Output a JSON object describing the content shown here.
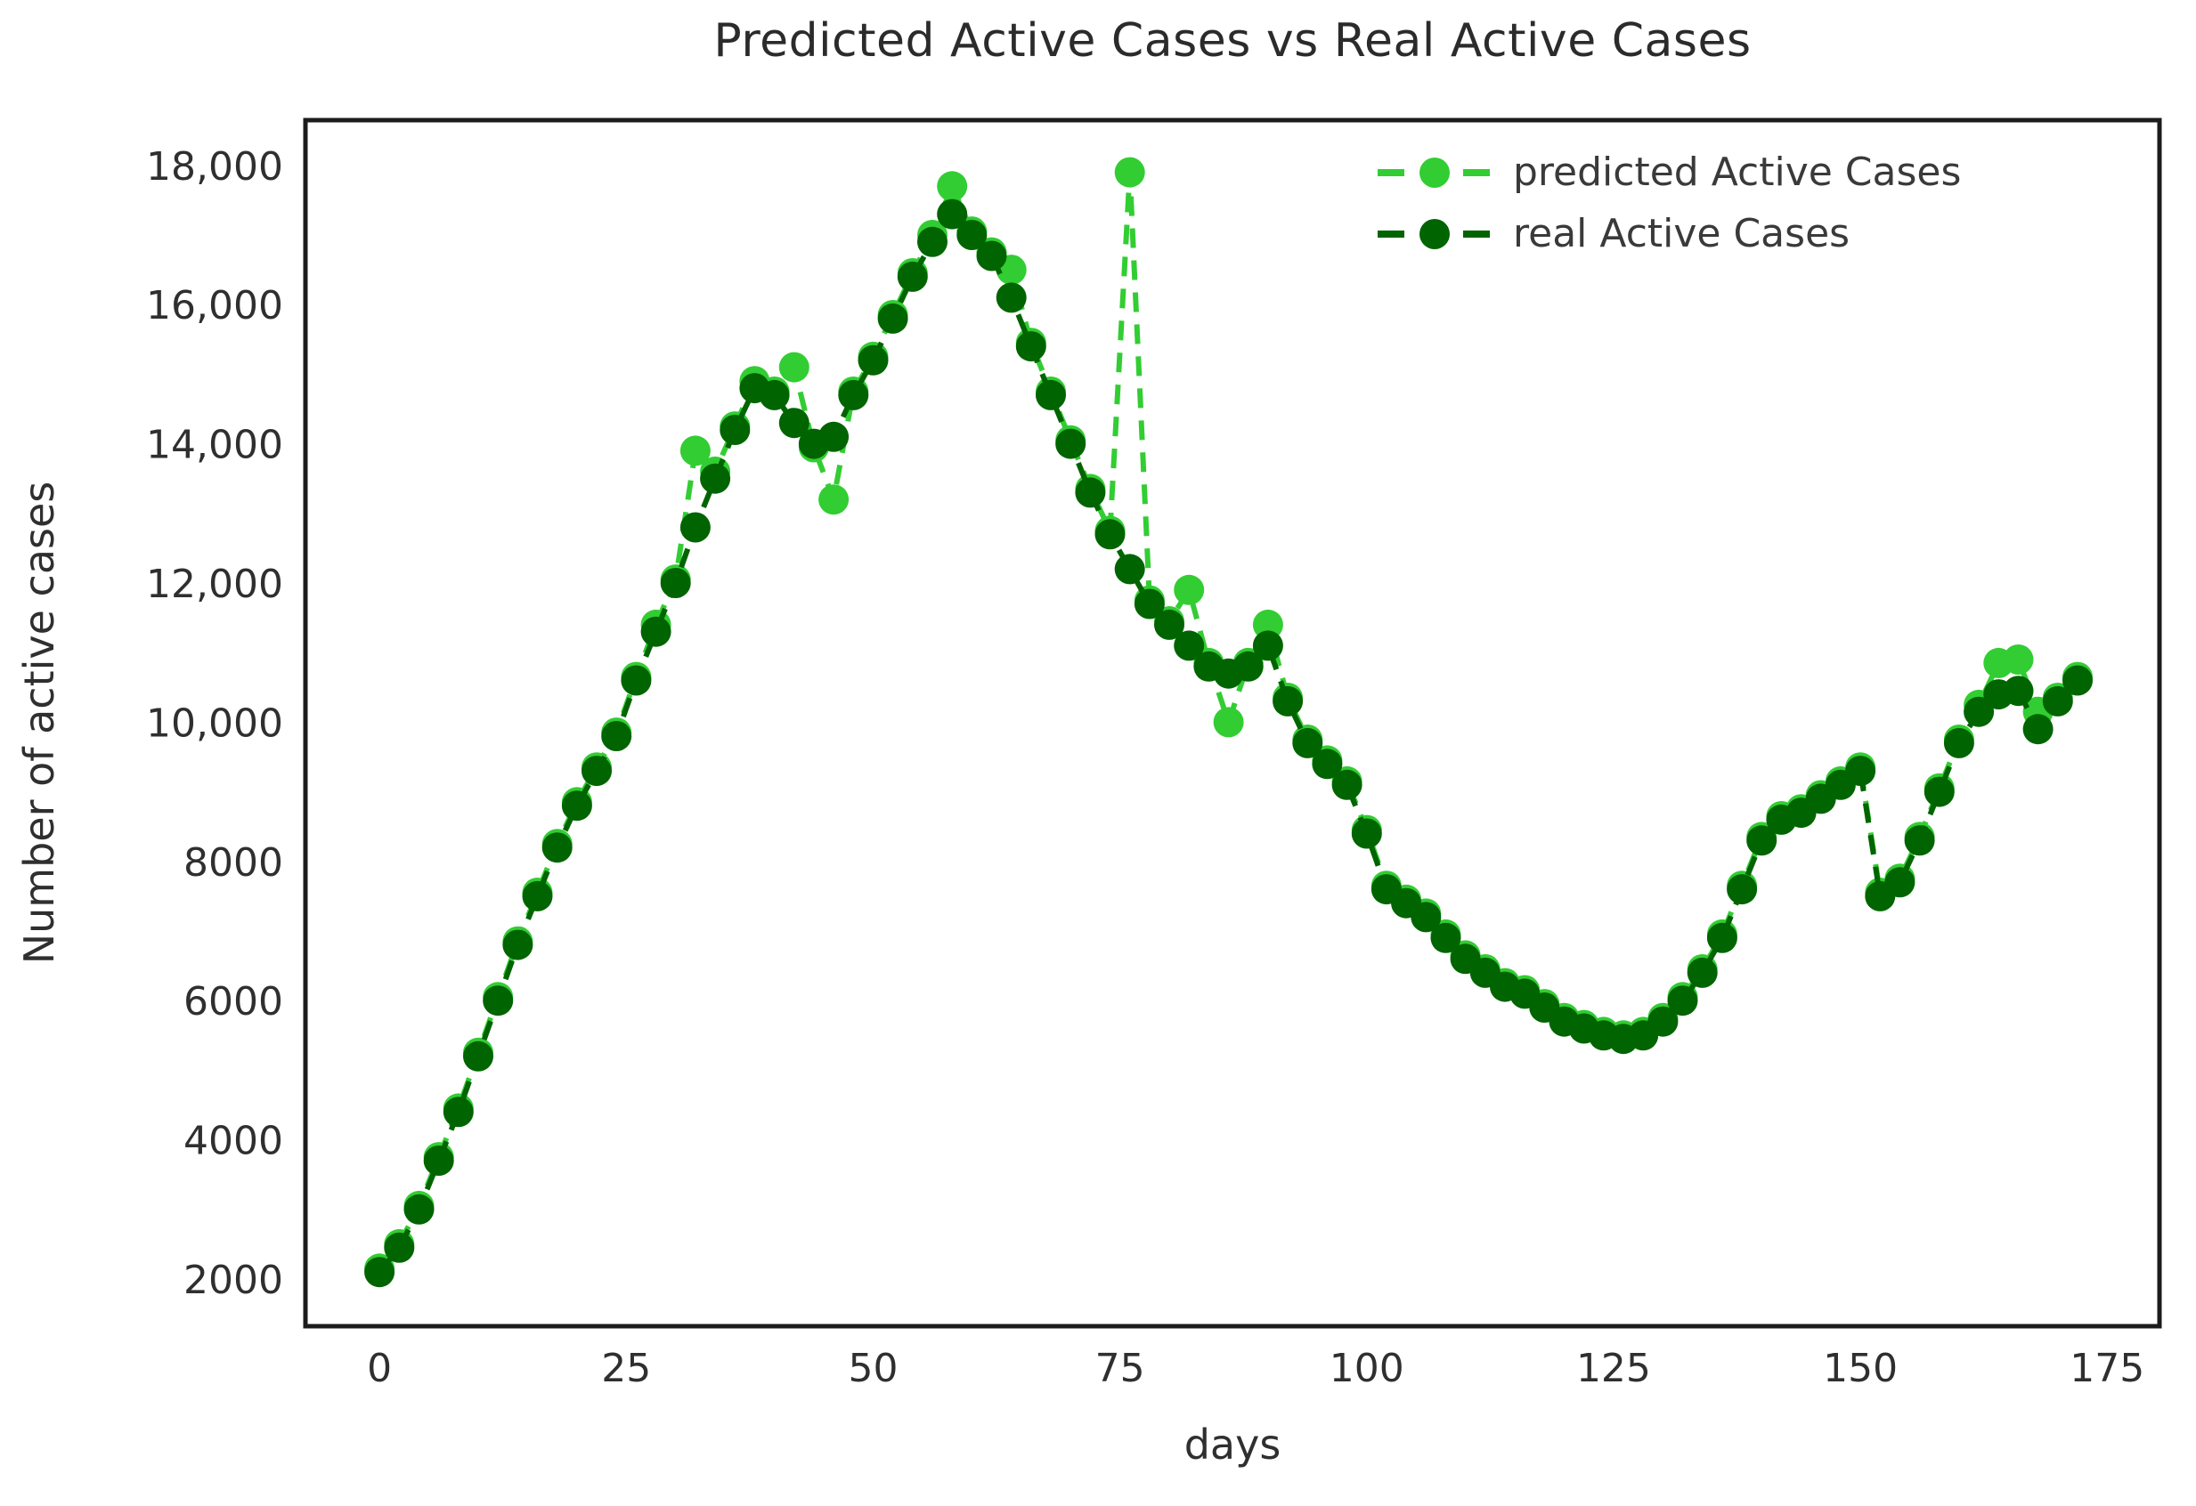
{
  "chart_data": {
    "type": "line",
    "title": "Predicted Active Cases vs Real Active Cases",
    "xlabel": "days",
    "ylabel": "Number of active cases",
    "grid": false,
    "legend_position": "upper right",
    "background_color": "#ffffff",
    "spine_color": "#1c1c1c",
    "text_color": "#2f2f2f",
    "xlim": [
      -7.5,
      180.3
    ],
    "ylim": [
      1322,
      18650
    ],
    "x_ticks": [
      {
        "v": 0,
        "label": "0"
      },
      {
        "v": 25,
        "label": "25"
      },
      {
        "v": 50,
        "label": "50"
      },
      {
        "v": 75,
        "label": "75"
      },
      {
        "v": 100,
        "label": "100"
      },
      {
        "v": 125,
        "label": "125"
      },
      {
        "v": 150,
        "label": "150"
      },
      {
        "v": 175,
        "label": "175"
      }
    ],
    "y_ticks": [
      {
        "v": 2000,
        "label": "2000"
      },
      {
        "v": 4000,
        "label": "4000"
      },
      {
        "v": 6000,
        "label": "6000"
      },
      {
        "v": 8000,
        "label": "8000"
      },
      {
        "v": 10000,
        "label": "10,000"
      },
      {
        "v": 12000,
        "label": "12,000"
      },
      {
        "v": 14000,
        "label": "14,000"
      },
      {
        "v": 16000,
        "label": "16,000"
      },
      {
        "v": 18000,
        "label": "18,000"
      }
    ],
    "x": [
      0,
      2,
      4,
      6,
      8,
      10,
      12,
      14,
      16,
      18,
      20,
      22,
      24,
      26,
      28,
      30,
      32,
      34,
      36,
      38,
      40,
      42,
      44,
      46,
      48,
      50,
      52,
      54,
      56,
      58,
      60,
      62,
      64,
      66,
      68,
      70,
      72,
      74,
      76,
      78,
      80,
      82,
      84,
      86,
      88,
      90,
      92,
      94,
      96,
      98,
      100,
      102,
      104,
      106,
      108,
      110,
      112,
      114,
      116,
      118,
      120,
      122,
      124,
      126,
      128,
      130,
      132,
      134,
      136,
      138,
      140,
      142,
      144,
      146,
      148,
      150,
      152,
      154,
      156,
      158,
      160,
      162,
      164,
      166,
      168,
      170,
      172
    ],
    "series": [
      {
        "name": "predicted Active Cases",
        "color": "#32CD32",
        "marker": "circle",
        "linestyle": "dashed",
        "values": [
          2150,
          2500,
          3050,
          3750,
          4450,
          5250,
          6050,
          6850,
          7550,
          8250,
          8850,
          9350,
          9850,
          10650,
          11400,
          12050,
          13900,
          13600,
          14250,
          14900,
          14750,
          15100,
          13950,
          13200,
          14750,
          15250,
          15850,
          16450,
          17000,
          17700,
          17050,
          16750,
          16500,
          15450,
          14750,
          14050,
          13350,
          12750,
          17900,
          11750,
          11450,
          11900,
          10850,
          10000,
          10850,
          11400,
          10350,
          9750,
          9450,
          9150,
          8450,
          7650,
          7450,
          7250,
          6950,
          6650,
          6450,
          6250,
          6150,
          5950,
          5750,
          5650,
          5550,
          5500,
          5550,
          5750,
          6050,
          6450,
          6950,
          7650,
          8350,
          8650,
          8750,
          8950,
          9150,
          9350,
          7550,
          7750,
          8350,
          9050,
          9750,
          10250,
          10850,
          10900,
          10150,
          10350,
          10650
        ]
      },
      {
        "name": "real Active Cases",
        "color": "#006400",
        "marker": "circle",
        "linestyle": "dashed",
        "values": [
          2100,
          2450,
          3000,
          3700,
          4400,
          5200,
          6000,
          6800,
          7500,
          8200,
          8800,
          9300,
          9800,
          10600,
          11300,
          12000,
          12800,
          13500,
          14200,
          14800,
          14700,
          14300,
          14000,
          14100,
          14700,
          15200,
          15800,
          16400,
          16900,
          17300,
          17000,
          16700,
          16100,
          15400,
          14700,
          14000,
          13300,
          12700,
          12200,
          11700,
          11400,
          11100,
          10800,
          10700,
          10800,
          11100,
          10300,
          9700,
          9400,
          9100,
          8400,
          7600,
          7400,
          7200,
          6900,
          6600,
          6400,
          6200,
          6100,
          5900,
          5700,
          5600,
          5500,
          5450,
          5500,
          5700,
          6000,
          6400,
          6900,
          7600,
          8300,
          8600,
          8700,
          8900,
          9100,
          9300,
          7500,
          7700,
          8300,
          9000,
          9700,
          10150,
          10400,
          10450,
          9900,
          10300,
          10600
        ]
      }
    ]
  }
}
